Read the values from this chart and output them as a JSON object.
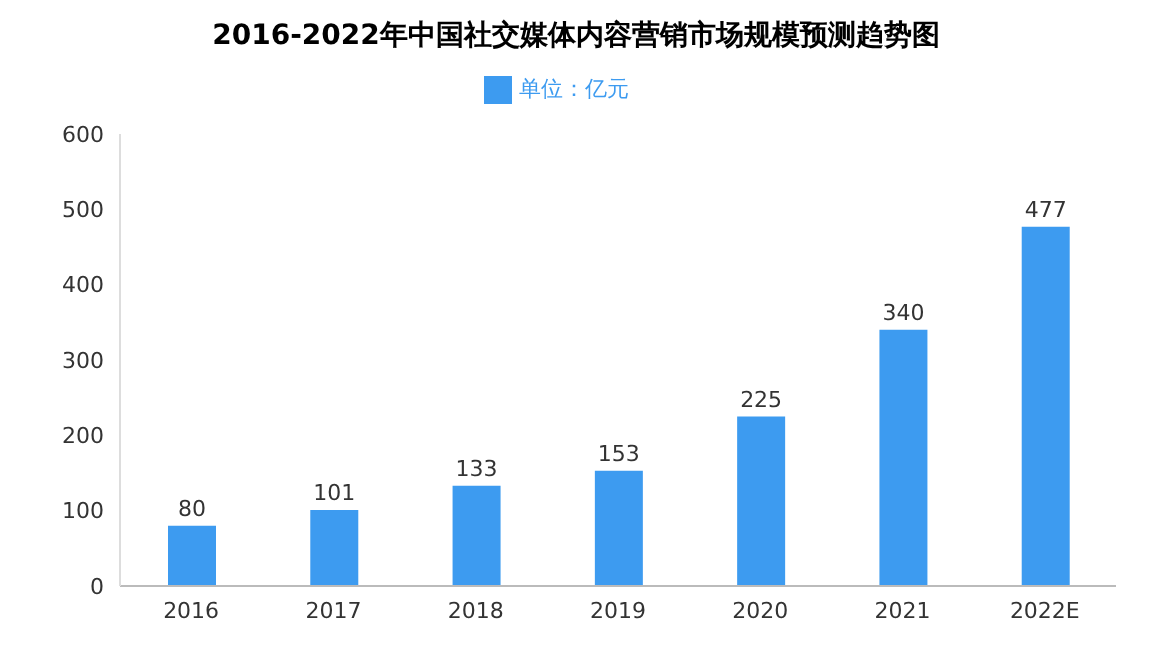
{
  "chart_data": {
    "type": "bar",
    "title": "2016-2022年中国社交媒体内容营销市场规模预测趋势图",
    "categories": [
      "2016",
      "2017",
      "2018",
      "2019",
      "2020",
      "2021",
      "2022E"
    ],
    "series": [
      {
        "name": "单位：亿元",
        "color": "#3d9bf0",
        "values": [
          80,
          101,
          133,
          153,
          225,
          340,
          477
        ]
      }
    ],
    "ylim": [
      0,
      600
    ],
    "yticks": [
      0,
      100,
      200,
      300,
      400,
      500,
      600
    ],
    "data_labels": true,
    "legend": "top"
  }
}
